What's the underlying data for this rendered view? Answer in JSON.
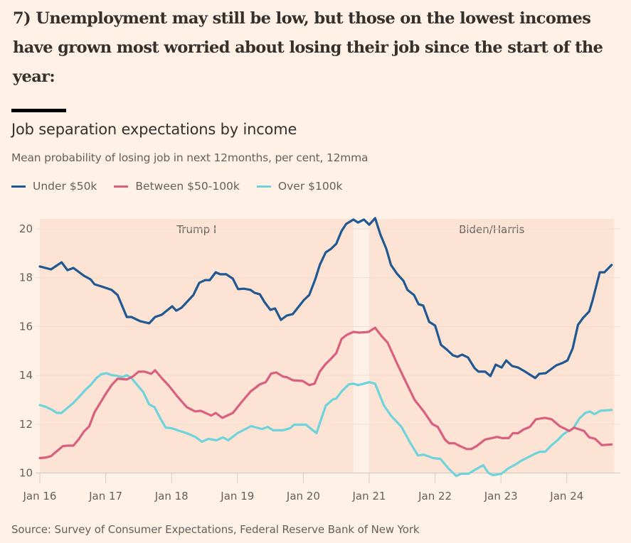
{
  "headline": "7) Unemployment may still be low, but those on the lowest incomes have grown most worried about losing their job since the start of the year:",
  "source": "Source: Survey of Consumer Expectations, Federal Reserve Bank of New York",
  "colors": {
    "background": "#fff1e5",
    "shade": "#fce3d3",
    "gap": "#fdf0e6",
    "under50k": "#1f5892",
    "between50_100k": "#d8607e",
    "over100k": "#6fd3dc"
  },
  "chart_data": {
    "type": "line",
    "title": "Job separation expectations by income",
    "subtitle": "Mean probability of losing job in next 12months, per cent, 12mma",
    "xlabel": "",
    "ylabel": "",
    "xlim": [
      2016.0,
      2024.72
    ],
    "ylim": [
      10,
      20.4
    ],
    "yticks": [
      10,
      12,
      14,
      16,
      18,
      20
    ],
    "xticks": [
      {
        "value": 2016,
        "label": "Jan 16"
      },
      {
        "value": 2017,
        "label": "Jan 17"
      },
      {
        "value": 2018,
        "label": "Jan 18"
      },
      {
        "value": 2019,
        "label": "Jan 19"
      },
      {
        "value": 2020,
        "label": "Jan 20"
      },
      {
        "value": 2021,
        "label": "Jan 21"
      },
      {
        "value": 2022,
        "label": "Jan 22"
      },
      {
        "value": 2023,
        "label": "Jan 23"
      },
      {
        "value": 2024,
        "label": "Jan 24"
      }
    ],
    "grid": true,
    "legend_position": "top-left",
    "shaded_regions": [
      {
        "label": "Trump I",
        "from": 2016.0,
        "to": 2020.76
      },
      {
        "label": "Biden/Harris",
        "from": 2021.0,
        "to": 2024.72
      }
    ],
    "series": [
      {
        "name": "Under $50k",
        "color_key": "under50k",
        "points": [
          [
            2016.0,
            18.46
          ],
          [
            2016.17,
            18.34
          ],
          [
            2016.33,
            18.63
          ],
          [
            2016.42,
            18.31
          ],
          [
            2016.51,
            18.4
          ],
          [
            2016.67,
            18.08
          ],
          [
            2016.77,
            17.93
          ],
          [
            2016.83,
            17.73
          ],
          [
            2016.94,
            17.64
          ],
          [
            2017.09,
            17.5
          ],
          [
            2017.18,
            17.29
          ],
          [
            2017.32,
            16.39
          ],
          [
            2017.39,
            16.39
          ],
          [
            2017.52,
            16.22
          ],
          [
            2017.66,
            16.13
          ],
          [
            2017.75,
            16.39
          ],
          [
            2017.85,
            16.48
          ],
          [
            2018.01,
            16.83
          ],
          [
            2018.07,
            16.65
          ],
          [
            2018.15,
            16.77
          ],
          [
            2018.33,
            17.29
          ],
          [
            2018.42,
            17.79
          ],
          [
            2018.51,
            17.9
          ],
          [
            2018.58,
            17.9
          ],
          [
            2018.67,
            18.22
          ],
          [
            2018.74,
            18.14
          ],
          [
            2018.83,
            18.14
          ],
          [
            2018.93,
            17.96
          ],
          [
            2019.01,
            17.53
          ],
          [
            2019.1,
            17.55
          ],
          [
            2019.2,
            17.5
          ],
          [
            2019.26,
            17.38
          ],
          [
            2019.34,
            17.32
          ],
          [
            2019.41,
            17.0
          ],
          [
            2019.5,
            16.68
          ],
          [
            2019.57,
            16.74
          ],
          [
            2019.66,
            16.27
          ],
          [
            2019.75,
            16.45
          ],
          [
            2019.84,
            16.51
          ],
          [
            2020.01,
            17.09
          ],
          [
            2020.09,
            17.29
          ],
          [
            2020.18,
            17.93
          ],
          [
            2020.25,
            18.52
          ],
          [
            2020.34,
            19.04
          ],
          [
            2020.42,
            19.18
          ],
          [
            2020.5,
            19.39
          ],
          [
            2020.58,
            19.91
          ],
          [
            2020.65,
            20.2
          ],
          [
            2020.76,
            20.38
          ],
          [
            2020.83,
            20.26
          ],
          [
            2020.92,
            20.38
          ],
          [
            2021.0,
            20.17
          ],
          [
            2021.09,
            20.44
          ],
          [
            2021.17,
            19.77
          ],
          [
            2021.26,
            19.18
          ],
          [
            2021.33,
            18.52
          ],
          [
            2021.42,
            18.17
          ],
          [
            2021.52,
            17.87
          ],
          [
            2021.58,
            17.5
          ],
          [
            2021.68,
            17.29
          ],
          [
            2021.75,
            16.91
          ],
          [
            2021.82,
            16.86
          ],
          [
            2021.91,
            16.19
          ],
          [
            2022.0,
            16.04
          ],
          [
            2022.09,
            15.25
          ],
          [
            2022.18,
            15.05
          ],
          [
            2022.27,
            14.82
          ],
          [
            2022.34,
            14.76
          ],
          [
            2022.41,
            14.85
          ],
          [
            2022.5,
            14.73
          ],
          [
            2022.6,
            14.29
          ],
          [
            2022.66,
            14.15
          ],
          [
            2022.76,
            14.15
          ],
          [
            2022.84,
            13.97
          ],
          [
            2022.92,
            14.44
          ],
          [
            2023.01,
            14.32
          ],
          [
            2023.08,
            14.61
          ],
          [
            2023.17,
            14.38
          ],
          [
            2023.26,
            14.32
          ],
          [
            2023.35,
            14.18
          ],
          [
            2023.42,
            14.06
          ],
          [
            2023.52,
            13.89
          ],
          [
            2023.58,
            14.06
          ],
          [
            2023.68,
            14.09
          ],
          [
            2023.74,
            14.21
          ],
          [
            2023.84,
            14.41
          ],
          [
            2023.93,
            14.5
          ],
          [
            2024.01,
            14.61
          ],
          [
            2024.09,
            15.11
          ],
          [
            2024.17,
            16.07
          ],
          [
            2024.25,
            16.36
          ],
          [
            2024.34,
            16.62
          ],
          [
            2024.39,
            17.06
          ],
          [
            2024.5,
            18.22
          ],
          [
            2024.57,
            18.22
          ],
          [
            2024.68,
            18.52
          ]
        ]
      },
      {
        "name": "Between $50-100k",
        "color_key": "between50_100k",
        "points": [
          [
            2016.0,
            10.61
          ],
          [
            2016.08,
            10.63
          ],
          [
            2016.17,
            10.69
          ],
          [
            2016.26,
            10.9
          ],
          [
            2016.35,
            11.1
          ],
          [
            2016.42,
            11.12
          ],
          [
            2016.51,
            11.12
          ],
          [
            2016.59,
            11.38
          ],
          [
            2016.67,
            11.7
          ],
          [
            2016.75,
            11.91
          ],
          [
            2016.83,
            12.49
          ],
          [
            2016.93,
            12.93
          ],
          [
            2017.01,
            13.28
          ],
          [
            2017.09,
            13.6
          ],
          [
            2017.18,
            13.86
          ],
          [
            2017.32,
            13.83
          ],
          [
            2017.41,
            13.95
          ],
          [
            2017.5,
            14.15
          ],
          [
            2017.59,
            14.15
          ],
          [
            2017.69,
            14.06
          ],
          [
            2017.75,
            14.21
          ],
          [
            2017.85,
            13.89
          ],
          [
            2017.96,
            13.57
          ],
          [
            2018.09,
            13.13
          ],
          [
            2018.23,
            12.7
          ],
          [
            2018.36,
            12.52
          ],
          [
            2018.44,
            12.55
          ],
          [
            2018.6,
            12.35
          ],
          [
            2018.58,
            12.38
          ],
          [
            2018.67,
            12.46
          ],
          [
            2018.77,
            12.26
          ],
          [
            2018.93,
            12.46
          ],
          [
            2019.07,
            12.93
          ],
          [
            2019.2,
            13.34
          ],
          [
            2019.34,
            13.63
          ],
          [
            2019.43,
            13.72
          ],
          [
            2019.51,
            14.07
          ],
          [
            2019.59,
            14.12
          ],
          [
            2019.69,
            13.95
          ],
          [
            2019.75,
            13.92
          ],
          [
            2019.84,
            13.8
          ],
          [
            2019.99,
            13.77
          ],
          [
            2020.09,
            13.6
          ],
          [
            2020.17,
            13.66
          ],
          [
            2020.25,
            14.15
          ],
          [
            2020.33,
            14.44
          ],
          [
            2020.42,
            14.68
          ],
          [
            2020.5,
            14.91
          ],
          [
            2020.58,
            15.49
          ],
          [
            2020.66,
            15.66
          ],
          [
            2020.76,
            15.78
          ],
          [
            2020.85,
            15.75
          ],
          [
            2020.99,
            15.78
          ],
          [
            2021.09,
            15.95
          ],
          [
            2021.19,
            15.6
          ],
          [
            2021.28,
            15.34
          ],
          [
            2021.42,
            14.5
          ],
          [
            2021.55,
            13.77
          ],
          [
            2021.69,
            12.99
          ],
          [
            2021.82,
            12.55
          ],
          [
            2021.96,
            12.0
          ],
          [
            2022.04,
            11.89
          ],
          [
            2022.15,
            11.37
          ],
          [
            2022.21,
            11.22
          ],
          [
            2022.29,
            11.22
          ],
          [
            2022.38,
            11.1
          ],
          [
            2022.48,
            10.98
          ],
          [
            2022.55,
            10.98
          ],
          [
            2022.63,
            11.1
          ],
          [
            2022.76,
            11.37
          ],
          [
            2022.86,
            11.43
          ],
          [
            2022.94,
            11.48
          ],
          [
            2023.02,
            11.43
          ],
          [
            2023.12,
            11.43
          ],
          [
            2023.18,
            11.63
          ],
          [
            2023.26,
            11.63
          ],
          [
            2023.34,
            11.78
          ],
          [
            2023.44,
            11.89
          ],
          [
            2023.53,
            12.2
          ],
          [
            2023.67,
            12.26
          ],
          [
            2023.77,
            12.2
          ],
          [
            2023.89,
            11.92
          ],
          [
            2024.04,
            11.72
          ],
          [
            2024.11,
            11.86
          ],
          [
            2024.26,
            11.72
          ],
          [
            2024.34,
            11.46
          ],
          [
            2024.43,
            11.4
          ],
          [
            2024.53,
            11.14
          ],
          [
            2024.68,
            11.17
          ]
        ]
      },
      {
        "name": "Over $100k",
        "color_key": "over100k",
        "points": [
          [
            2016.0,
            12.78
          ],
          [
            2016.08,
            12.72
          ],
          [
            2016.17,
            12.61
          ],
          [
            2016.26,
            12.46
          ],
          [
            2016.33,
            12.46
          ],
          [
            2016.42,
            12.67
          ],
          [
            2016.51,
            12.87
          ],
          [
            2016.61,
            13.16
          ],
          [
            2016.69,
            13.4
          ],
          [
            2016.78,
            13.63
          ],
          [
            2016.86,
            13.89
          ],
          [
            2016.93,
            14.04
          ],
          [
            2017.01,
            14.09
          ],
          [
            2017.09,
            14.01
          ],
          [
            2017.18,
            13.98
          ],
          [
            2017.25,
            13.92
          ],
          [
            2017.32,
            14.01
          ],
          [
            2017.39,
            13.89
          ],
          [
            2017.48,
            13.6
          ],
          [
            2017.57,
            13.31
          ],
          [
            2017.66,
            12.81
          ],
          [
            2017.74,
            12.7
          ],
          [
            2017.83,
            12.23
          ],
          [
            2017.91,
            11.86
          ],
          [
            2018.01,
            11.83
          ],
          [
            2018.09,
            11.75
          ],
          [
            2018.23,
            11.63
          ],
          [
            2018.36,
            11.48
          ],
          [
            2018.46,
            11.28
          ],
          [
            2018.56,
            11.4
          ],
          [
            2018.68,
            11.34
          ],
          [
            2018.78,
            11.46
          ],
          [
            2018.86,
            11.34
          ],
          [
            2019.0,
            11.63
          ],
          [
            2019.21,
            11.92
          ],
          [
            2019.37,
            11.8
          ],
          [
            2019.46,
            11.89
          ],
          [
            2019.54,
            11.75
          ],
          [
            2019.69,
            11.75
          ],
          [
            2019.8,
            11.83
          ],
          [
            2019.86,
            11.98
          ],
          [
            2020.04,
            11.98
          ],
          [
            2020.2,
            11.63
          ],
          [
            2020.34,
            12.76
          ],
          [
            2020.45,
            13.02
          ],
          [
            2020.5,
            13.05
          ],
          [
            2020.58,
            13.34
          ],
          [
            2020.69,
            13.63
          ],
          [
            2020.76,
            13.66
          ],
          [
            2020.83,
            13.6
          ],
          [
            2020.92,
            13.66
          ],
          [
            2021.0,
            13.72
          ],
          [
            2021.09,
            13.66
          ],
          [
            2021.22,
            12.78
          ],
          [
            2021.33,
            12.35
          ],
          [
            2021.49,
            11.89
          ],
          [
            2021.62,
            11.25
          ],
          [
            2021.74,
            10.72
          ],
          [
            2021.83,
            10.75
          ],
          [
            2021.97,
            10.61
          ],
          [
            2022.08,
            10.58
          ],
          [
            2022.21,
            10.17
          ],
          [
            2022.32,
            9.88
          ],
          [
            2022.4,
            9.97
          ],
          [
            2022.51,
            9.97
          ],
          [
            2022.62,
            10.15
          ],
          [
            2022.73,
            10.32
          ],
          [
            2022.81,
            10.0
          ],
          [
            2022.88,
            9.91
          ],
          [
            2023.01,
            9.97
          ],
          [
            2023.1,
            10.17
          ],
          [
            2023.22,
            10.35
          ],
          [
            2023.3,
            10.49
          ],
          [
            2023.41,
            10.64
          ],
          [
            2023.51,
            10.78
          ],
          [
            2023.59,
            10.87
          ],
          [
            2023.67,
            10.87
          ],
          [
            2023.77,
            11.14
          ],
          [
            2023.87,
            11.37
          ],
          [
            2023.94,
            11.57
          ],
          [
            2024.02,
            11.72
          ],
          [
            2024.09,
            11.8
          ],
          [
            2024.19,
            12.23
          ],
          [
            2024.28,
            12.46
          ],
          [
            2024.35,
            12.52
          ],
          [
            2024.42,
            12.41
          ],
          [
            2024.51,
            12.55
          ],
          [
            2024.68,
            12.58
          ]
        ]
      }
    ]
  }
}
